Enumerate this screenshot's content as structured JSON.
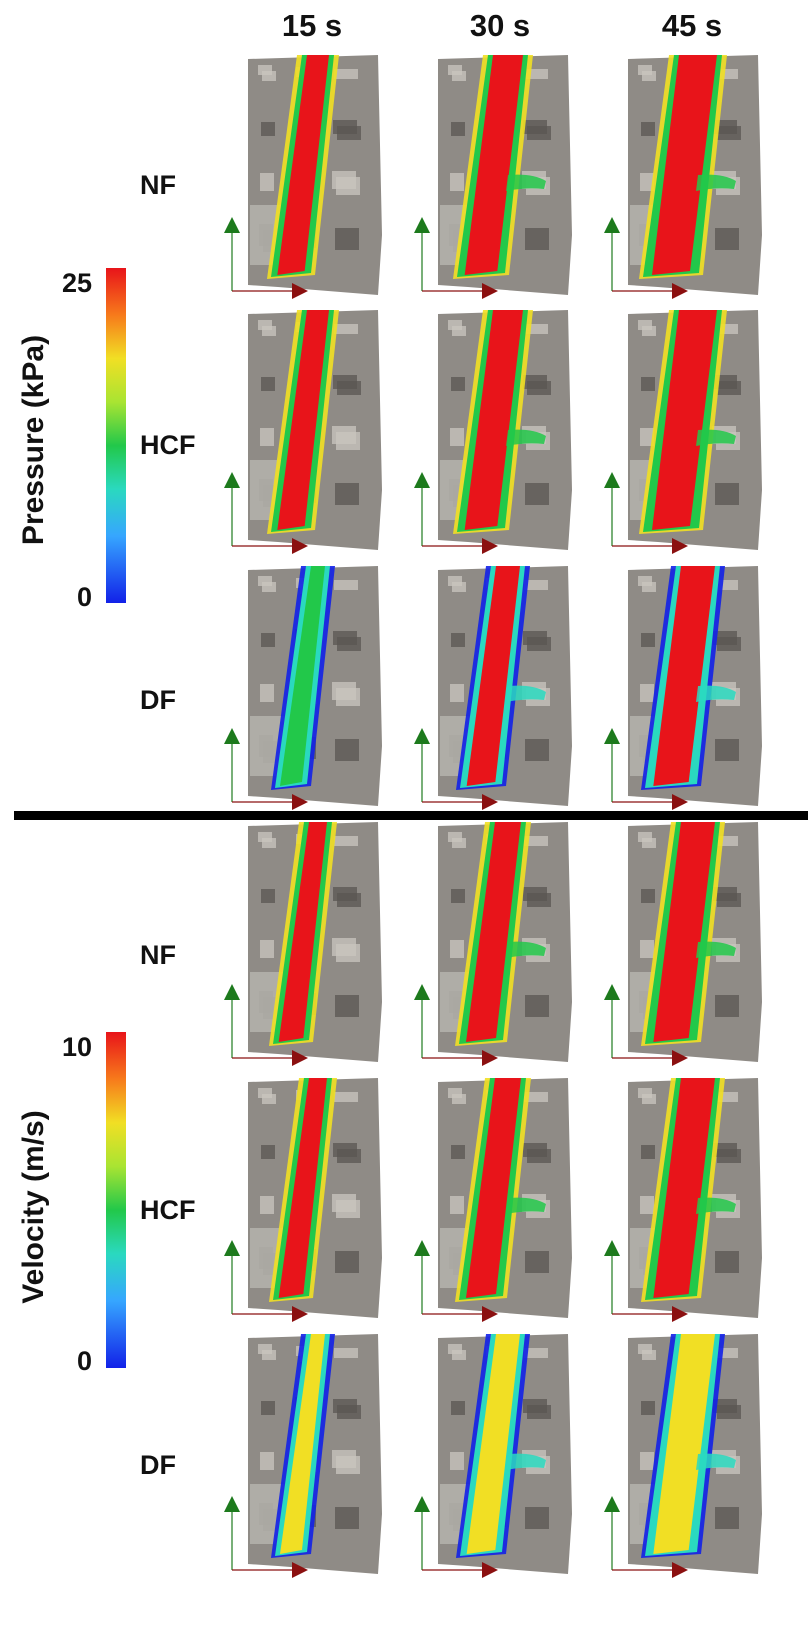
{
  "columns": [
    "15 s",
    "30 s",
    "45 s"
  ],
  "rows": [
    "NF",
    "HCF",
    "DF"
  ],
  "sections": [
    {
      "colorbar": {
        "title": "Pressure (kPa)",
        "max": "25",
        "min": "0"
      }
    },
    {
      "colorbar": {
        "title": "Velocity (m/s)",
        "max": "10",
        "min": "0"
      }
    }
  ],
  "colors": {
    "scale_high": "#e8141a",
    "scale_mid_high": "#f1df24",
    "scale_mid": "#22c84a",
    "scale_mid_low": "#2ad9bf",
    "scale_low": "#1221e8",
    "terrain": "#8f8b86",
    "axis_y": "#1d7a1d",
    "axis_x": "#8b1010"
  }
}
